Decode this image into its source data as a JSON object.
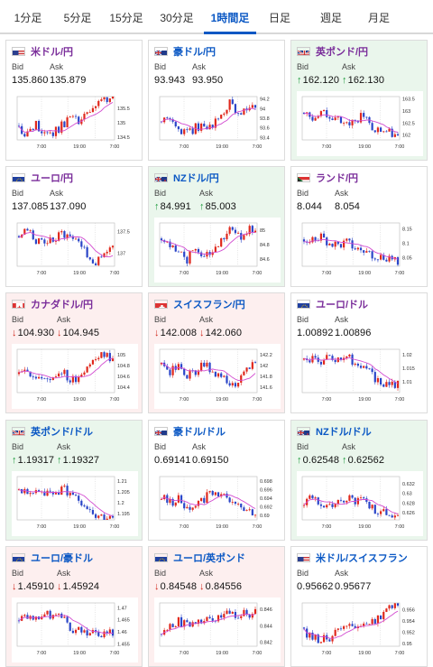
{
  "tabs": [
    "1分足",
    "5分足",
    "15分足",
    "30分足",
    "1時間足",
    "日足",
    "週足",
    "月足"
  ],
  "active_tab": 4,
  "labels": {
    "bid": "Bid",
    "ask": "Ask"
  },
  "colors": {
    "accent": "#0b58c4",
    "up_candle": "#e0281c",
    "down_candle": "#2a45c8",
    "ma_line": "#d24bd0",
    "up_bg": "#eaf6ec",
    "down_bg": "#fdefef"
  },
  "cards": [
    {
      "pair": "米ドル/円",
      "flag": "us",
      "bid": "135.860",
      "ask": "135.879",
      "dir": "none",
      "chart_data": {
        "type": "candlestick",
        "x_ticks": [
          "7:00",
          "19:00",
          "7:00"
        ],
        "y_ticks": [
          "135.5",
          "135",
          "134.5"
        ],
        "y_range": [
          134.4,
          135.9
        ],
        "trend": [
          134.8,
          134.6,
          134.9,
          134.7,
          134.6,
          134.9,
          135.2,
          135.0,
          135.3,
          135.5,
          135.8,
          135.9
        ]
      }
    },
    {
      "pair": "豪ドル/円",
      "flag": "au",
      "bid": "93.943",
      "ask": "93.950",
      "dir": "none",
      "chart_data": {
        "type": "candlestick",
        "x_ticks": [
          "7:00",
          "19:00",
          "7:00"
        ],
        "y_ticks": [
          "94.2",
          "94",
          "93.8",
          "93.6",
          "93.4"
        ],
        "y_range": [
          93.35,
          94.25
        ],
        "trend": [
          93.7,
          93.8,
          93.6,
          93.5,
          93.6,
          93.7,
          93.6,
          93.9,
          94.1,
          93.9,
          94.0,
          94.0
        ]
      }
    },
    {
      "pair": "英ポンド/円",
      "flag": "gb",
      "bid": "162.120",
      "ask": "162.130",
      "dir": "up",
      "chart_data": {
        "type": "candlestick",
        "x_ticks": [
          "7:00",
          "19:00",
          "7:00"
        ],
        "y_ticks": [
          "163.5",
          "163",
          "162.5",
          "162"
        ],
        "y_range": [
          161.8,
          163.6
        ],
        "trend": [
          162.9,
          162.8,
          162.9,
          162.8,
          162.7,
          162.6,
          162.6,
          162.8,
          162.3,
          162.2,
          162.1,
          162.1
        ]
      }
    },
    {
      "pair": "ユーロ/円",
      "flag": "eu",
      "bid": "137.085",
      "ask": "137.090",
      "dir": "none",
      "chart_data": {
        "type": "candlestick",
        "x_ticks": [
          "7:00",
          "19:00",
          "7:00"
        ],
        "y_ticks": [
          "137.5",
          "137"
        ],
        "y_range": [
          136.7,
          137.7
        ],
        "trend": [
          137.4,
          137.5,
          137.3,
          137.2,
          137.3,
          137.5,
          137.4,
          137.3,
          136.9,
          136.8,
          137.0,
          137.1
        ]
      }
    },
    {
      "pair": "NZドル/円",
      "flag": "nz",
      "bid": "84.991",
      "ask": "85.003",
      "dir": "up",
      "chart_data": {
        "type": "candlestick",
        "x_ticks": [
          "7:00",
          "19:00",
          "7:00"
        ],
        "y_ticks": [
          "85",
          "84.8",
          "84.6"
        ],
        "y_range": [
          84.5,
          85.1
        ],
        "trend": [
          84.9,
          84.8,
          84.7,
          84.6,
          84.8,
          84.6,
          84.7,
          84.9,
          85.0,
          84.9,
          85.0,
          85.0
        ]
      }
    },
    {
      "pair": "ランド/円",
      "flag": "za",
      "bid": "8.044",
      "ask": "8.054",
      "dir": "none",
      "chart_data": {
        "type": "candlestick",
        "x_ticks": [
          "7:00",
          "19:00",
          "7:00"
        ],
        "y_ticks": [
          "8.15",
          "8.1",
          "8.05"
        ],
        "y_range": [
          8.02,
          8.17
        ],
        "trend": [
          8.12,
          8.11,
          8.12,
          8.1,
          8.09,
          8.1,
          8.08,
          8.07,
          8.06,
          8.05,
          8.05,
          8.04
        ]
      }
    },
    {
      "pair": "カナダドル/円",
      "flag": "ca",
      "bid": "104.930",
      "ask": "104.945",
      "dir": "down",
      "chart_data": {
        "type": "candlestick",
        "x_ticks": [
          "7:00",
          "19:00",
          "7:00"
        ],
        "y_ticks": [
          "105",
          "104.8",
          "104.6",
          "104.4"
        ],
        "y_range": [
          104.3,
          105.1
        ],
        "trend": [
          104.6,
          104.7,
          104.6,
          104.5,
          104.6,
          104.7,
          104.5,
          104.6,
          104.8,
          104.9,
          105.0,
          104.9
        ]
      }
    },
    {
      "pair": "スイスフラン/円",
      "flag": "ch",
      "bid": "142.008",
      "ask": "142.060",
      "dir": "down",
      "chart_data": {
        "type": "candlestick",
        "x_ticks": [
          "7:00",
          "19:00",
          "7:00"
        ],
        "y_ticks": [
          "142.2",
          "142",
          "141.8",
          "141.6"
        ],
        "y_range": [
          141.5,
          142.3
        ],
        "trend": [
          142.0,
          141.9,
          142.0,
          141.8,
          141.9,
          142.0,
          141.9,
          141.8,
          141.6,
          141.7,
          141.9,
          142.1
        ]
      }
    },
    {
      "pair": "ユーロ/ドル",
      "flag": "eu",
      "bid": "1.00892",
      "ask": "1.00896",
      "dir": "none",
      "chart_data": {
        "type": "candlestick",
        "x_ticks": [
          "7:00",
          "19:00",
          "7:00"
        ],
        "y_ticks": [
          "1.02",
          "1.015",
          "1.01"
        ],
        "y_range": [
          1.006,
          1.022
        ],
        "trend": [
          1.018,
          1.019,
          1.018,
          1.019,
          1.018,
          1.019,
          1.017,
          1.016,
          1.012,
          1.01,
          1.009,
          1.009
        ]
      }
    },
    {
      "pair": "英ポンド/ドル",
      "flag": "gb",
      "bid": "1.19317",
      "ask": "1.19327",
      "dir": "up",
      "chart_data": {
        "type": "candlestick",
        "x_ticks": [
          "7:00",
          "19:00",
          "7:00"
        ],
        "y_ticks": [
          "1.21",
          "1.205",
          "1.2",
          "1.195"
        ],
        "y_range": [
          1.192,
          1.212
        ],
        "trend": [
          1.206,
          1.205,
          1.206,
          1.205,
          1.204,
          1.206,
          1.205,
          1.201,
          1.198,
          1.195,
          1.194,
          1.193
        ]
      }
    },
    {
      "pair": "豪ドル/ドル",
      "flag": "au",
      "bid": "0.69141",
      "ask": "0.69150",
      "dir": "none",
      "chart_data": {
        "type": "candlestick",
        "x_ticks": [
          "7:00",
          "19:00",
          "7:00"
        ],
        "y_ticks": [
          "0.698",
          "0.696",
          "0.694",
          "0.692",
          "0.69"
        ],
        "y_range": [
          0.689,
          0.699
        ],
        "trend": [
          0.694,
          0.693,
          0.694,
          0.692,
          0.693,
          0.694,
          0.695,
          0.695,
          0.693,
          0.692,
          0.691,
          0.691
        ]
      }
    },
    {
      "pair": "NZドル/ドル",
      "flag": "nz",
      "bid": "0.62548",
      "ask": "0.62562",
      "dir": "up",
      "chart_data": {
        "type": "candlestick",
        "x_ticks": [
          "7:00",
          "19:00",
          "7:00"
        ],
        "y_ticks": [
          "0.632",
          "0.63",
          "0.628",
          "0.626"
        ],
        "y_range": [
          0.6245,
          0.6335
        ],
        "trend": [
          0.628,
          0.629,
          0.628,
          0.627,
          0.628,
          0.629,
          0.628,
          0.629,
          0.627,
          0.626,
          0.626,
          0.625
        ]
      }
    },
    {
      "pair": "ユーロ/豪ドル",
      "flag": "eu",
      "bid": "1.45910",
      "ask": "1.45924",
      "dir": "down",
      "chart_data": {
        "type": "candlestick",
        "x_ticks": [
          "7:00",
          "19:00",
          "7:00"
        ],
        "y_ticks": [
          "1.47",
          "1.465",
          "1.46",
          "1.455"
        ],
        "y_range": [
          1.454,
          1.472
        ],
        "trend": [
          1.466,
          1.467,
          1.466,
          1.468,
          1.467,
          1.466,
          1.461,
          1.462,
          1.46,
          1.46,
          1.459,
          1.459
        ]
      }
    },
    {
      "pair": "ユーロ/英ポンド",
      "flag": "eu",
      "bid": "0.84548",
      "ask": "0.84556",
      "dir": "down",
      "chart_data": {
        "type": "candlestick",
        "x_ticks": [
          "7:00",
          "19:00",
          "7:00"
        ],
        "y_ticks": [
          "0.846",
          "0.844",
          "0.842"
        ],
        "y_range": [
          0.8415,
          0.8468
        ],
        "trend": [
          0.8435,
          0.844,
          0.8445,
          0.8442,
          0.8446,
          0.8444,
          0.8448,
          0.845,
          0.8456,
          0.8452,
          0.8455,
          0.8455
        ]
      }
    },
    {
      "pair": "米ドル/スイスフラン",
      "flag": "us",
      "bid": "0.95662",
      "ask": "0.95677",
      "dir": "none",
      "chart_data": {
        "type": "candlestick",
        "x_ticks": [
          "7:00",
          "19:00",
          "7:00"
        ],
        "y_ticks": [
          "0.956",
          "0.954",
          "0.952",
          "0.95"
        ],
        "y_range": [
          0.9495,
          0.9572
        ],
        "trend": [
          0.952,
          0.951,
          0.9505,
          0.951,
          0.952,
          0.9525,
          0.953,
          0.9535,
          0.954,
          0.955,
          0.956,
          0.9566
        ]
      }
    }
  ]
}
